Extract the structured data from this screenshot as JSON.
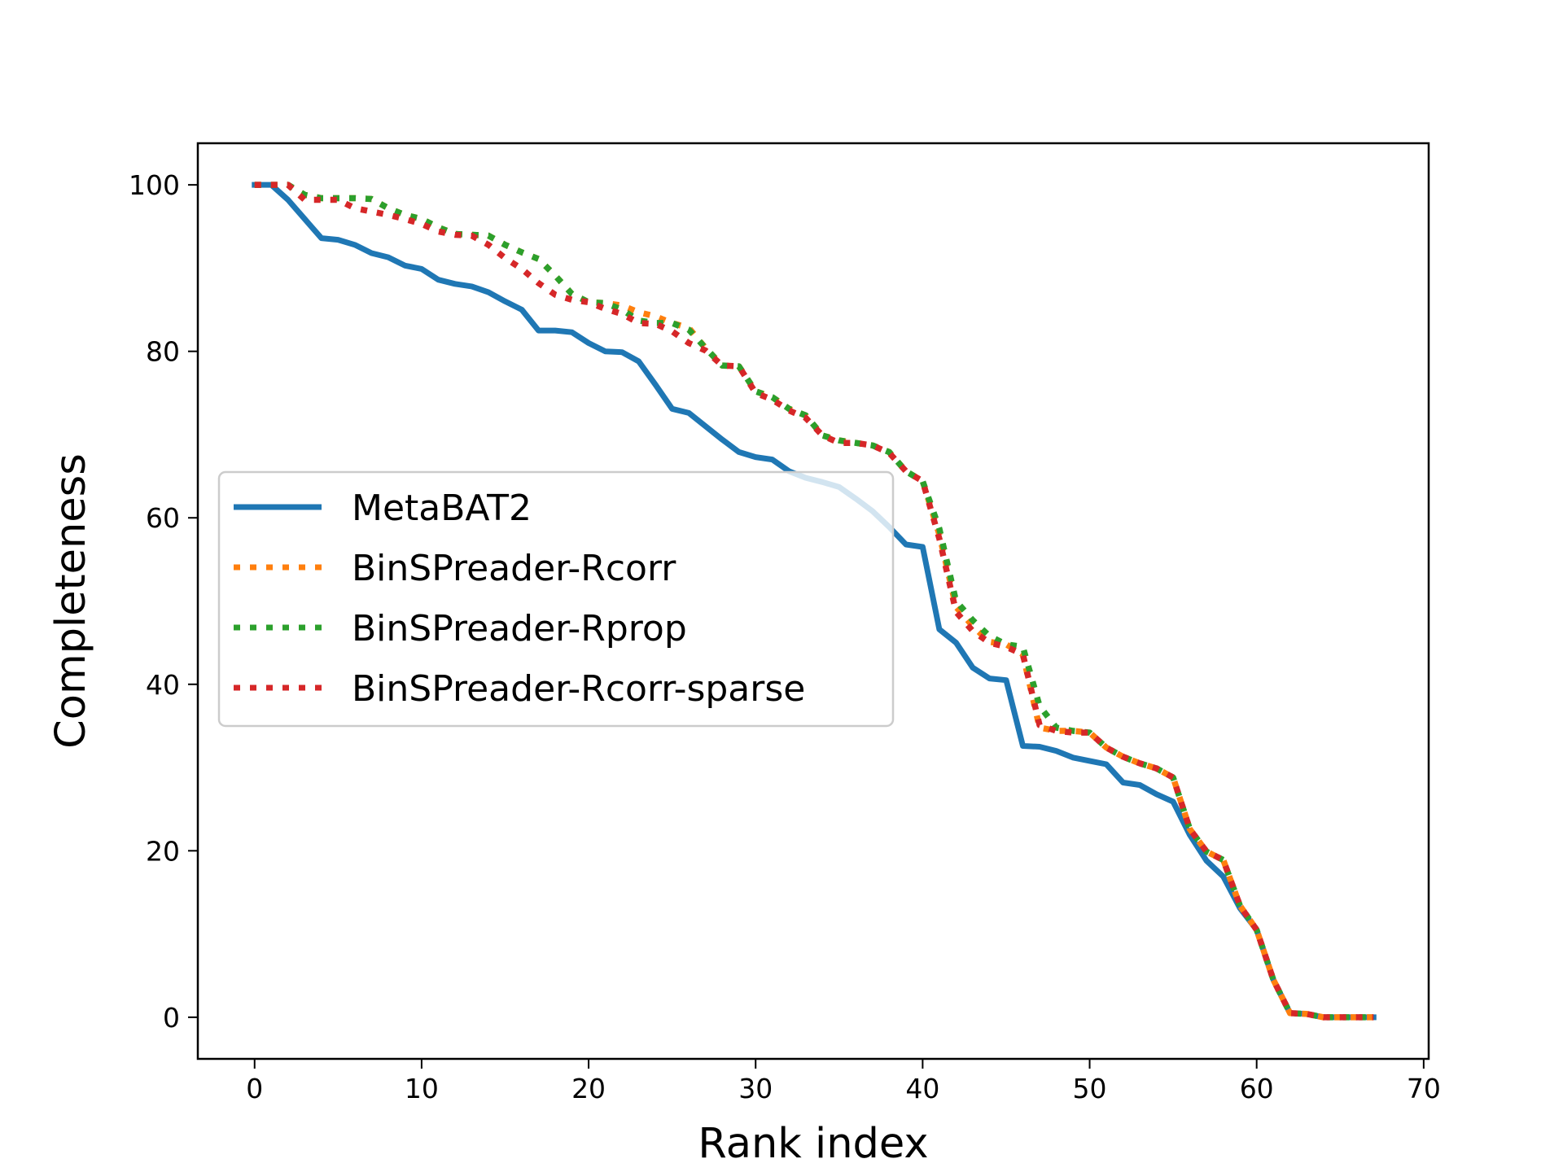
{
  "chart_data": {
    "type": "line",
    "title": "",
    "xlabel": "Rank index",
    "ylabel": "Completeness",
    "xlim": [
      -3.4,
      70.3
    ],
    "ylim": [
      -5,
      105
    ],
    "xticks": [
      0,
      10,
      20,
      30,
      40,
      50,
      60,
      70
    ],
    "yticks": [
      0,
      20,
      40,
      60,
      80,
      100
    ],
    "grid": false,
    "legend_position": "center-left",
    "x": [
      0,
      1,
      2,
      3,
      4,
      5,
      6,
      7,
      8,
      9,
      10,
      11,
      12,
      13,
      14,
      15,
      16,
      17,
      18,
      19,
      20,
      21,
      22,
      23,
      24,
      25,
      26,
      27,
      28,
      29,
      30,
      31,
      32,
      33,
      34,
      35,
      36,
      37,
      38,
      39,
      40,
      41,
      42,
      43,
      44,
      45,
      46,
      47,
      48,
      49,
      50,
      51,
      52,
      53,
      54,
      55,
      56,
      57,
      58,
      59,
      60,
      61,
      62,
      63,
      64,
      65,
      66,
      67
    ],
    "series": [
      {
        "name": "MetaBAT2",
        "color": "#1f77b4",
        "style": "solid",
        "values": [
          100,
          100,
          98.2,
          95.9,
          93.6,
          93.4,
          92.8,
          91.8,
          91.3,
          90.3,
          89.9,
          88.6,
          88.1,
          87.8,
          87.1,
          86,
          85,
          82.5,
          82.5,
          82.3,
          81,
          80,
          79.9,
          78.8,
          76,
          73.1,
          72.6,
          71,
          69.4,
          67.9,
          67.3,
          67,
          65.6,
          64.8,
          64.3,
          63.7,
          62.3,
          60.8,
          58.9,
          56.8,
          56.5,
          46.6,
          45,
          42,
          40.7,
          40.5,
          32.6,
          32.5,
          32,
          31.2,
          30.8,
          30.4,
          28.2,
          27.9,
          26.8,
          25.9,
          21.9,
          18.8,
          16.9,
          13.1,
          10.5,
          4.5,
          0.5,
          0.4,
          0,
          0,
          0,
          0
        ]
      },
      {
        "name": "BinSPreader-Rcorr",
        "color": "#ff7f0e",
        "style": "dotted",
        "values": [
          100,
          100,
          100,
          98.8,
          98.4,
          98.4,
          98.4,
          98.3,
          97.2,
          96.4,
          95.9,
          94.9,
          94.1,
          94,
          93.9,
          92.8,
          91.9,
          91.1,
          89.1,
          86.9,
          85.9,
          85.8,
          85.5,
          84.7,
          84.2,
          83.4,
          82.8,
          80.4,
          78.3,
          78.2,
          75.2,
          74.5,
          73.1,
          72.3,
          69.9,
          69.3,
          69,
          68.7,
          67.9,
          65.6,
          64.4,
          58,
          49.3,
          47,
          45.1,
          44.8,
          43.6,
          34.8,
          34.4,
          34.4,
          34.2,
          32.4,
          31.3,
          30.5,
          29.9,
          28.8,
          22.6,
          19.9,
          18.9,
          13.4,
          10.5,
          4.5,
          0.5,
          0.4,
          0,
          0,
          0,
          0
        ]
      },
      {
        "name": "BinSPreader-Rprop",
        "color": "#2ca02c",
        "style": "dotted",
        "values": [
          100,
          100,
          100,
          98.8,
          98.4,
          98.4,
          98.4,
          98.3,
          97.2,
          96.4,
          95.9,
          94.9,
          94.1,
          94,
          93.9,
          92.8,
          91.9,
          91.1,
          89.1,
          86.9,
          85.9,
          85.8,
          85,
          83.7,
          83.4,
          83.4,
          82.6,
          80.4,
          78.3,
          78.2,
          75.2,
          74.5,
          73.1,
          72.3,
          69.9,
          69.3,
          69,
          68.7,
          67.9,
          65.6,
          64.4,
          58.7,
          50,
          47.7,
          45.8,
          44.8,
          44.5,
          37.4,
          34.8,
          34.4,
          34.2,
          32.4,
          31.3,
          30.5,
          29.9,
          28.8,
          22.6,
          19.9,
          18.9,
          13.4,
          10.5,
          4.5,
          0.5,
          0.4,
          0,
          0,
          0,
          0
        ]
      },
      {
        "name": "BinSPreader-Rcorr-sparse",
        "color": "#d62728",
        "style": "dotted",
        "values": [
          100,
          100,
          100,
          98.2,
          98.2,
          98.2,
          97.2,
          96.8,
          96.4,
          95.9,
          95.3,
          94.4,
          94,
          93.9,
          92.8,
          91.2,
          89.9,
          88.2,
          86.8,
          86.2,
          85.9,
          85.1,
          84.5,
          83.4,
          83.3,
          82.4,
          81,
          80.1,
          78.3,
          78.2,
          75,
          74.2,
          72.9,
          72,
          69.9,
          69,
          69,
          68.7,
          67.8,
          65.6,
          64.4,
          57.5,
          48.7,
          46.4,
          45,
          44.5,
          43.6,
          35.1,
          34.4,
          34.2,
          34.2,
          32.4,
          31.3,
          30.5,
          29.9,
          28.8,
          22.6,
          19.9,
          18.9,
          13.4,
          10.5,
          4.5,
          0.5,
          0.4,
          0,
          0,
          0,
          0
        ]
      }
    ]
  }
}
